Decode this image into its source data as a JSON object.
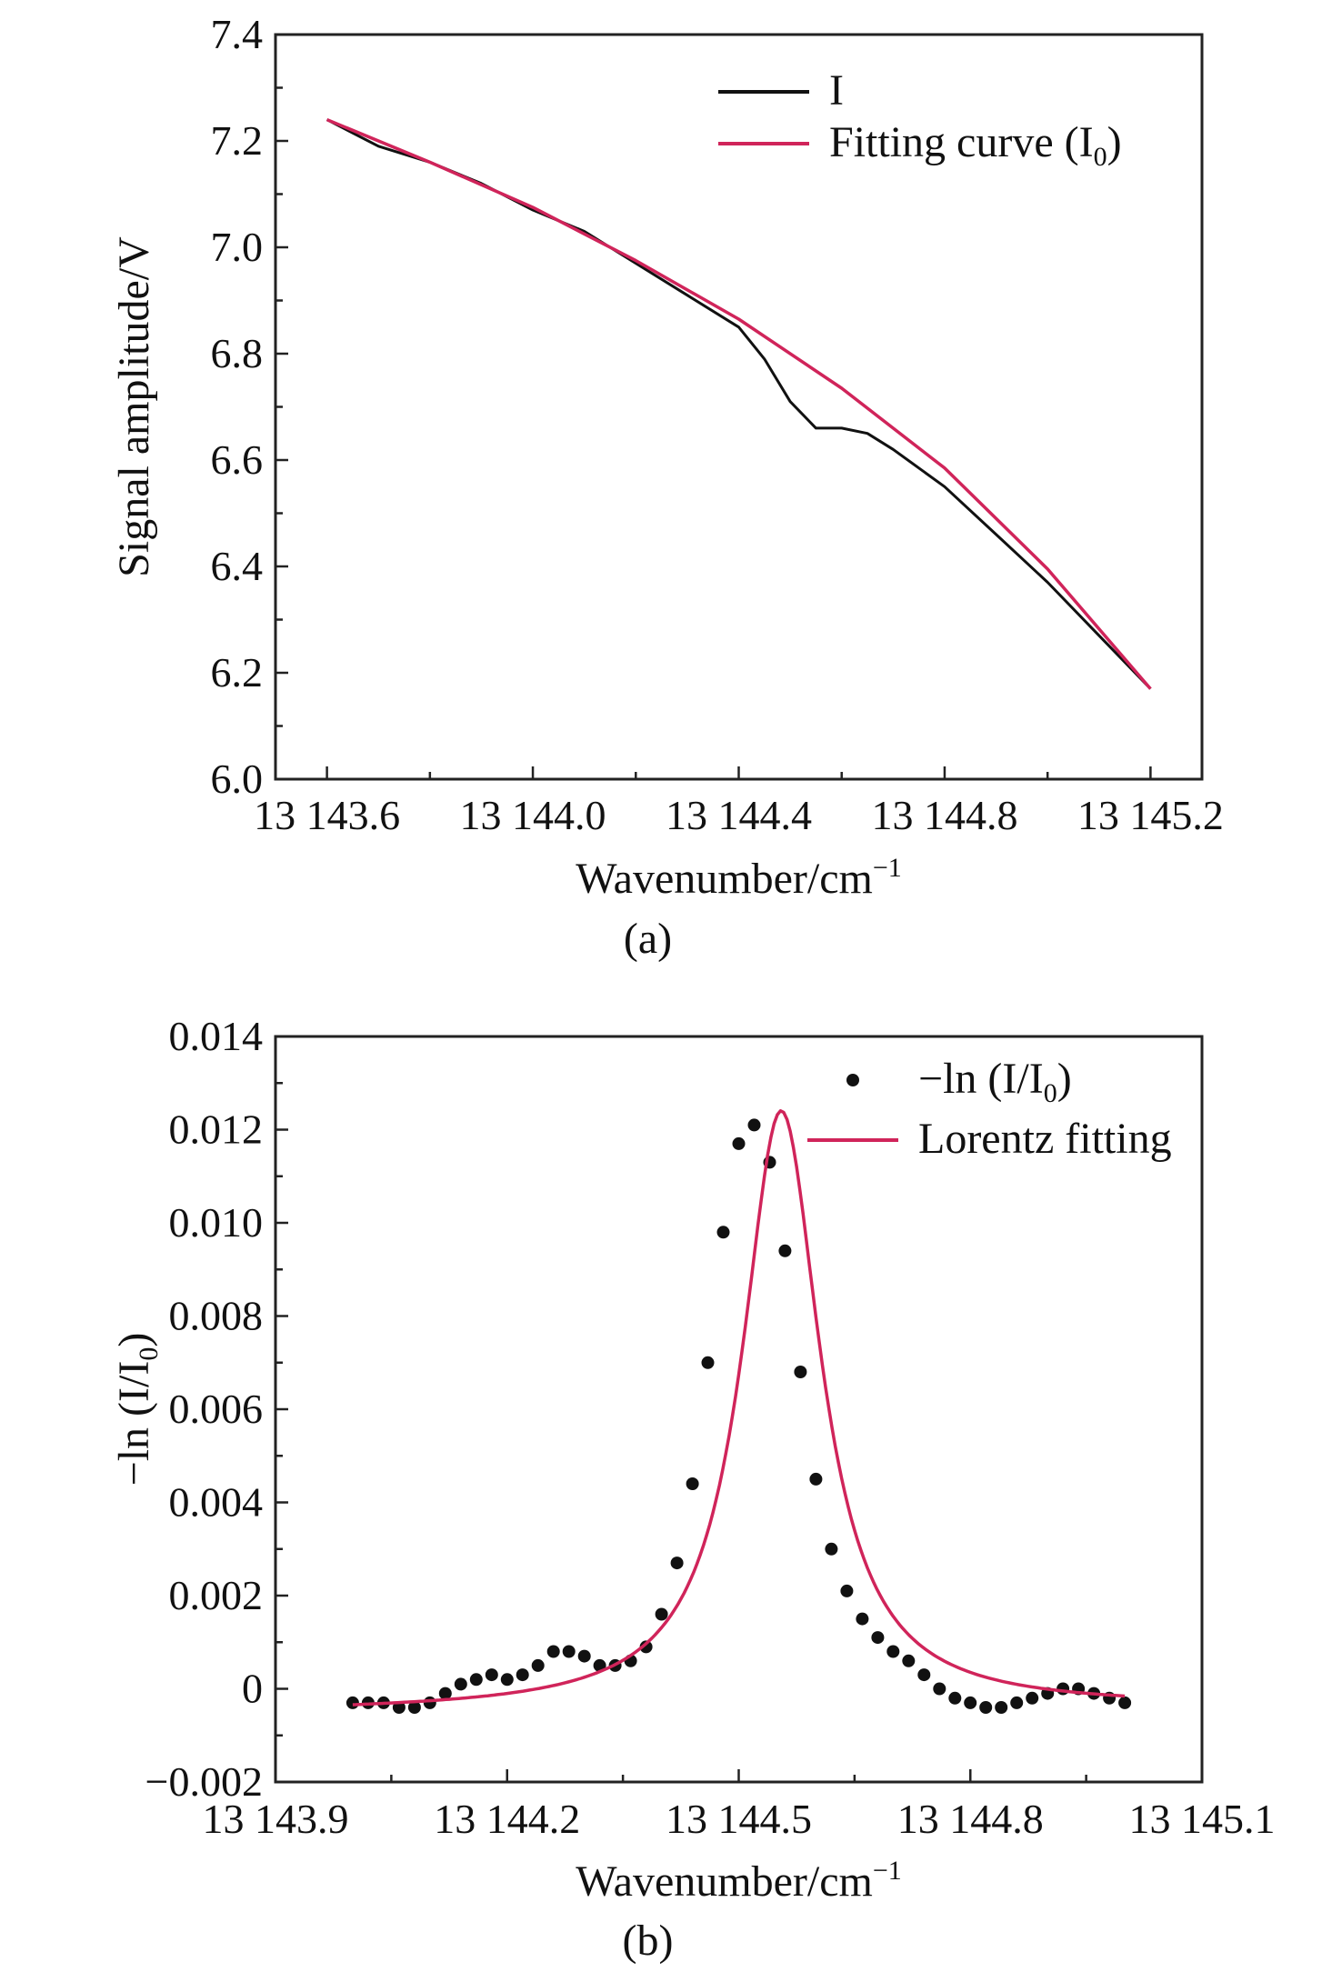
{
  "chart_data": [
    {
      "type": "line",
      "caption": "(a)",
      "xlabel": "Wavenumber/cm",
      "xlabel_sup": "−1",
      "ylabel": "Signal amplitude/V",
      "xlim": [
        13143.5,
        13145.3
      ],
      "ylim": [
        6.0,
        7.4
      ],
      "x_ticks": [
        13143.6,
        13144.0,
        13144.4,
        13144.8,
        13145.2
      ],
      "x_tick_labels": [
        "13 143.6",
        "13 144.0",
        "13 144.4",
        "13 144.8",
        "13 145.2"
      ],
      "y_ticks": [
        6.0,
        6.2,
        6.4,
        6.6,
        6.8,
        7.0,
        7.2,
        7.4
      ],
      "y_tick_labels": [
        "6.0",
        "6.2",
        "6.4",
        "6.6",
        "6.8",
        "7.0",
        "7.2",
        "7.4"
      ],
      "legend_position": "top-right",
      "grid": false,
      "series": [
        {
          "name": "I",
          "color": "#111111",
          "x": [
            13143.6,
            13143.7,
            13143.8,
            13143.9,
            13144.0,
            13144.1,
            13144.2,
            13144.3,
            13144.4,
            13144.45,
            13144.5,
            13144.55,
            13144.6,
            13144.65,
            13144.7,
            13144.8,
            13144.9,
            13145.0,
            13145.1,
            13145.2
          ],
          "y": [
            7.24,
            7.19,
            7.16,
            7.12,
            7.07,
            7.03,
            6.97,
            6.91,
            6.85,
            6.79,
            6.71,
            6.66,
            6.66,
            6.65,
            6.62,
            6.55,
            6.46,
            6.37,
            6.27,
            6.17
          ]
        },
        {
          "name": "Fitting curve (I",
          "name_sub": "0",
          "name_suffix": ")",
          "color": "#d0245a",
          "x": [
            13143.6,
            13143.8,
            13144.0,
            13144.2,
            13144.4,
            13144.6,
            13144.8,
            13145.0,
            13145.2
          ],
          "y": [
            7.24,
            7.16,
            7.075,
            6.975,
            6.865,
            6.735,
            6.585,
            6.395,
            6.17
          ]
        }
      ]
    },
    {
      "type": "scatter",
      "caption": "(b)",
      "xlabel": "Wavenumber/cm",
      "xlabel_sup": "−1",
      "ylabel": "−ln (I/I",
      "ylabel_sub": "0",
      "ylabel_suffix": ")",
      "xlim": [
        13143.9,
        13145.1
      ],
      "ylim": [
        -0.002,
        0.014
      ],
      "x_ticks": [
        13143.9,
        13144.2,
        13144.5,
        13144.8,
        13145.1
      ],
      "x_tick_labels": [
        "13 143.9",
        "13 144.2",
        "13 144.5",
        "13 144.8",
        "13 145.1"
      ],
      "y_ticks": [
        -0.002,
        0,
        0.002,
        0.004,
        0.006,
        0.008,
        0.01,
        0.012,
        0.014
      ],
      "y_tick_labels": [
        "−0.002",
        "0",
        "0.002",
        "0.004",
        "0.006",
        "0.008",
        "0.010",
        "0.012",
        "0.014"
      ],
      "legend_position": "top-right",
      "grid": false,
      "series": [
        {
          "name": "−ln (I/I",
          "name_sub": "0",
          "name_suffix": ")",
          "marker": "dot",
          "color": "#111111",
          "x": [
            13144.0,
            13144.02,
            13144.04,
            13144.06,
            13144.08,
            13144.1,
            13144.12,
            13144.14,
            13144.16,
            13144.18,
            13144.2,
            13144.22,
            13144.24,
            13144.26,
            13144.28,
            13144.3,
            13144.32,
            13144.34,
            13144.36,
            13144.38,
            13144.4,
            13144.42,
            13144.44,
            13144.46,
            13144.48,
            13144.5,
            13144.52,
            13144.54,
            13144.56,
            13144.58,
            13144.6,
            13144.62,
            13144.64,
            13144.66,
            13144.68,
            13144.7,
            13144.72,
            13144.74,
            13144.76,
            13144.78,
            13144.8,
            13144.82,
            13144.84,
            13144.86,
            13144.88,
            13144.9,
            13144.92,
            13144.94,
            13144.96,
            13144.98,
            13145.0
          ],
          "y": [
            -0.0003,
            -0.0003,
            -0.0003,
            -0.0004,
            -0.0004,
            -0.0003,
            -0.0001,
            0.0001,
            0.0002,
            0.0003,
            0.0002,
            0.0003,
            0.0005,
            0.0008,
            0.0008,
            0.0007,
            0.0005,
            0.0005,
            0.0006,
            0.0009,
            0.0016,
            0.0027,
            0.0044,
            0.007,
            0.0098,
            0.0117,
            0.0121,
            0.0113,
            0.0094,
            0.0068,
            0.0045,
            0.003,
            0.0021,
            0.0015,
            0.0011,
            0.0008,
            0.0006,
            0.0003,
            0.0,
            -0.0002,
            -0.0003,
            -0.0004,
            -0.0004,
            -0.0003,
            -0.0002,
            -0.0001,
            0.0,
            0.0,
            -0.0001,
            -0.0002,
            -0.0003
          ]
        },
        {
          "name": "Lorentz fitting",
          "type": "line",
          "color": "#d0245a",
          "x0": 13144.555,
          "amplitude": 0.01285,
          "hwhm": 0.062,
          "offset_start": -0.0005,
          "offset_end": -0.0004,
          "x_range": [
            13144.0,
            13145.0
          ]
        }
      ]
    }
  ]
}
